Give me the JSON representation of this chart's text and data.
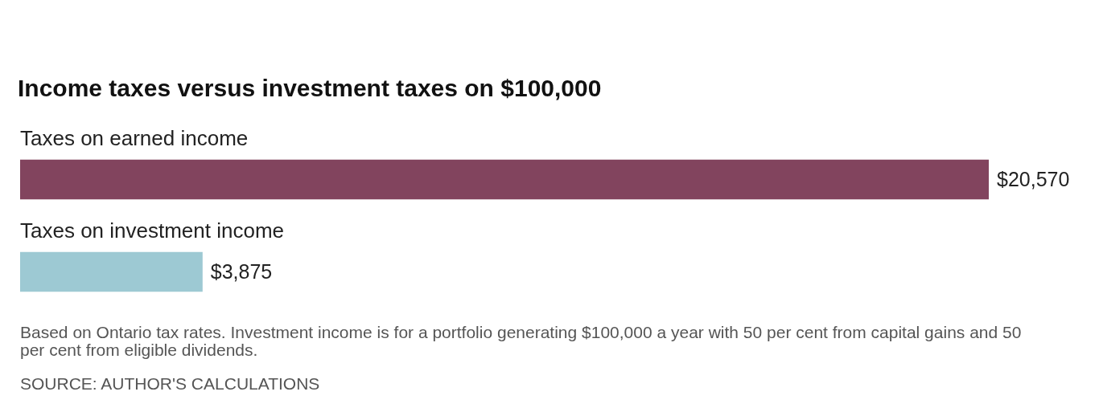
{
  "chart_data": {
    "type": "bar",
    "orientation": "horizontal",
    "title": "Income taxes versus investment taxes on $100,000",
    "categories": [
      "Taxes on earned income",
      "Taxes on investment income"
    ],
    "values": [
      20570,
      3875
    ],
    "colors": [
      "#82445e",
      "#9dc9d3"
    ],
    "value_labels": [
      "$20,570",
      "$3,875"
    ],
    "annotations": [
      "Based on Ontario tax rates. Investment income is for a portfolio generating $100,000 a year with 50 per cent from capital gains and 50 per cent from eligible dividends.",
      "SOURCE: AUTHOR'S CALCULATIONS"
    ]
  }
}
